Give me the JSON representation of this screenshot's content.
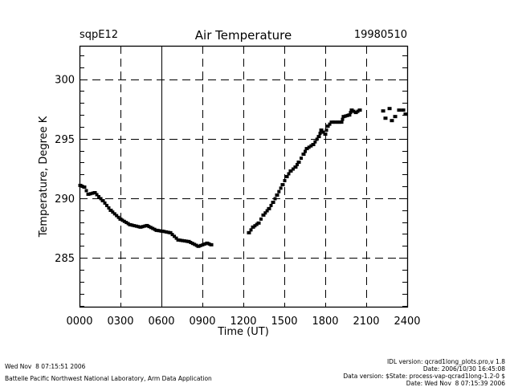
{
  "header": {
    "site": "sqpE12",
    "title": "Air Temperature",
    "date": "19980510"
  },
  "footer": {
    "left_lines": [
      "Wed Nov  8 07:15:51 2006",
      "Battelle Pacific Northwest National Laboratory, Arm Data Application"
    ],
    "right_lines": [
      "IDL version: qcrad1long_plots.pro,v 1.8",
      "Date: 2006/10/30 16:45:08",
      "Data version: $State: process-vap-qcrad1long-1.2-0 $",
      "Date: Wed Nov  8 07:15:39 2006"
    ]
  },
  "chart_data": {
    "type": "scatter",
    "title": "Air Temperature",
    "xlabel": "Time (UT)",
    "ylabel": "Temperature, Degree K",
    "xlim": [
      0,
      24
    ],
    "ylim": [
      280.9,
      302.8
    ],
    "x_ticks": [
      0,
      3,
      6,
      9,
      12,
      15,
      18,
      21,
      24
    ],
    "x_tick_labels": [
      "0000",
      "0300",
      "0600",
      "0900",
      "1200",
      "1500",
      "1800",
      "2100",
      "2400"
    ],
    "y_ticks": [
      285,
      290,
      295,
      300
    ],
    "y_tick_labels": [
      "285",
      "290",
      "295",
      "300"
    ],
    "y_minor_step": 1,
    "grid": true,
    "series": [
      {
        "name": "Air Temperature",
        "x": [
          0.06,
          0.35,
          0.65,
          1.12,
          1.71,
          2.29,
          3.0,
          3.71,
          4.47,
          4.94,
          5.65,
          6.06,
          6.65,
          7.24,
          8.0,
          8.71,
          9.35,
          9.65,
          12.41,
          12.71,
          13.12,
          13.47,
          13.88,
          14.18,
          14.47,
          14.88,
          15.18,
          15.47,
          15.82,
          16.06,
          16.41,
          16.65,
          17.12,
          17.53,
          17.71,
          18.0,
          18.18,
          18.47,
          18.76,
          19.18,
          19.35,
          19.76,
          19.94,
          20.24,
          20.53,
          22.24,
          22.41,
          22.71,
          22.88,
          23.12,
          23.41,
          23.71,
          23.88
        ],
        "y": [
          291.08,
          290.94,
          290.34,
          290.47,
          289.8,
          288.99,
          288.25,
          287.78,
          287.58,
          287.71,
          287.31,
          287.24,
          287.11,
          286.5,
          286.37,
          285.97,
          286.23,
          286.1,
          287.11,
          287.58,
          287.92,
          288.59,
          289.13,
          289.66,
          290.27,
          291.14,
          291.82,
          292.29,
          292.62,
          293.03,
          293.7,
          294.17,
          294.51,
          295.18,
          295.72,
          295.38,
          296.05,
          296.39,
          296.39,
          296.39,
          296.86,
          296.99,
          297.4,
          297.2,
          297.4,
          297.33,
          296.72,
          297.53,
          296.52,
          296.86,
          297.4,
          297.4,
          297.06
        ]
      }
    ]
  }
}
